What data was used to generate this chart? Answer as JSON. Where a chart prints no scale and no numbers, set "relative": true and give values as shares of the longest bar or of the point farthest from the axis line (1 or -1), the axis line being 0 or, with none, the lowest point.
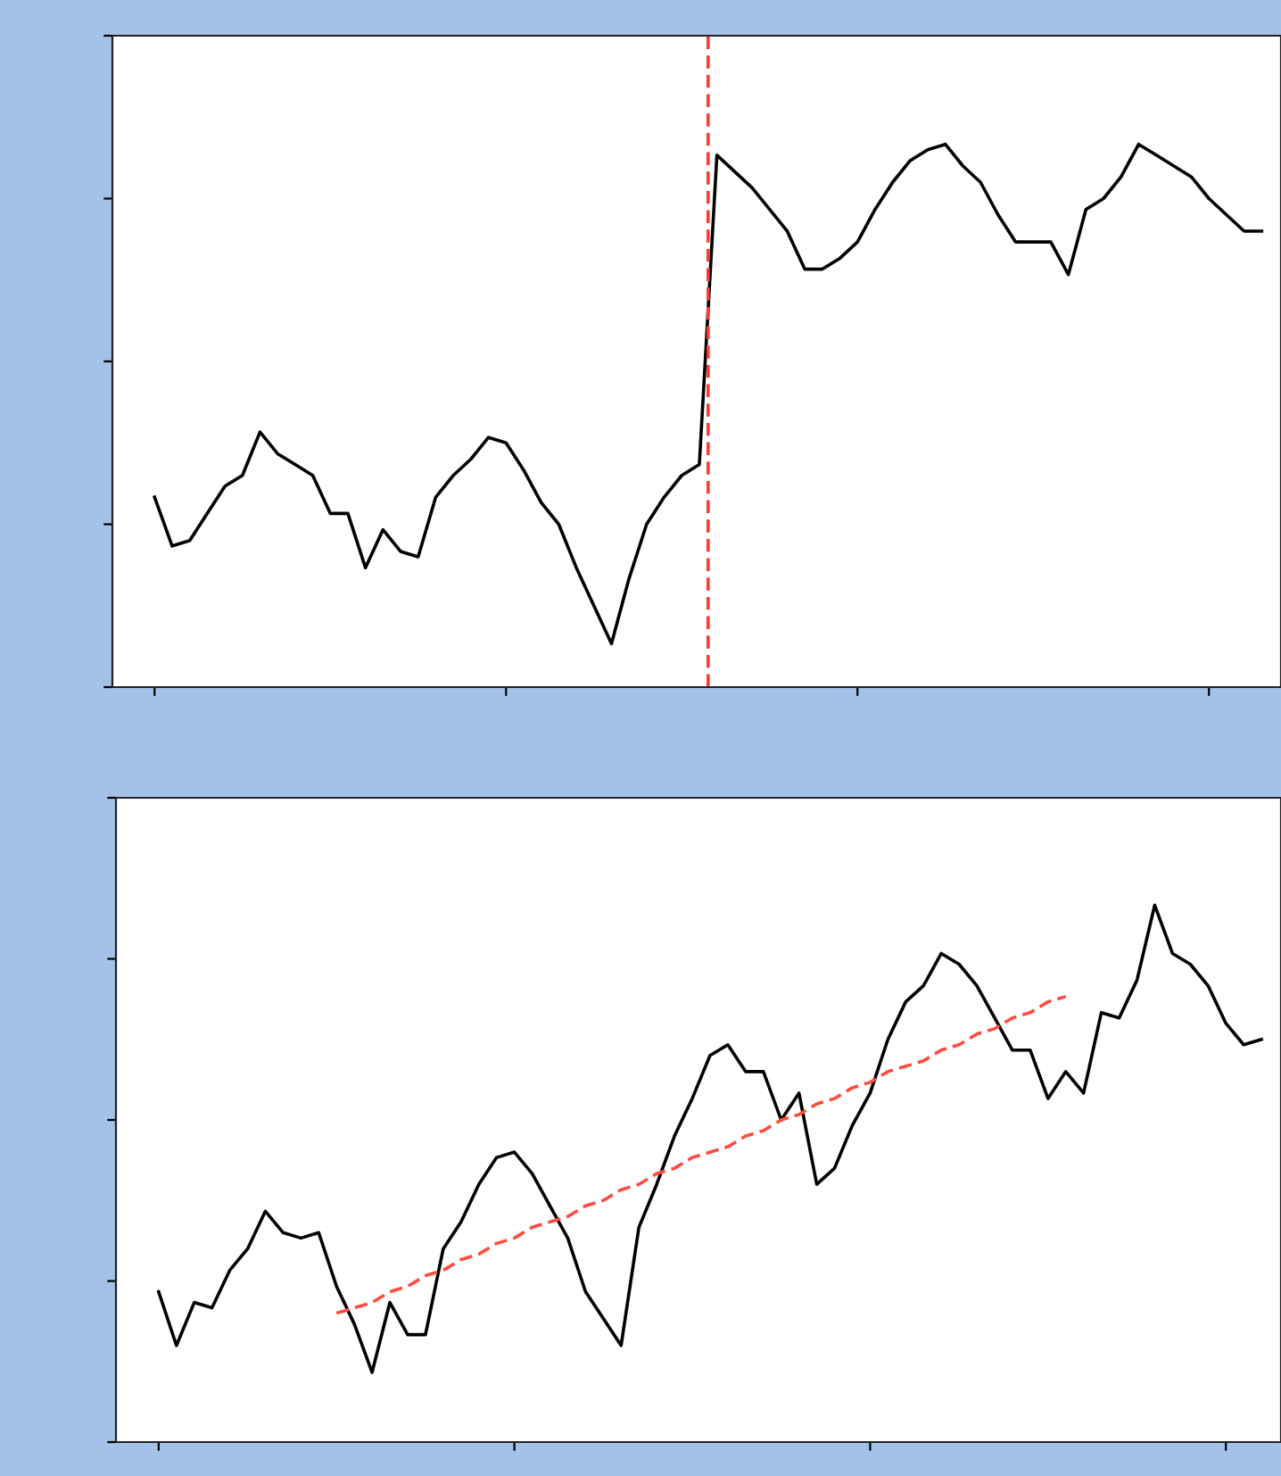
{
  "chart_data": [
    {
      "type": "line",
      "relative": true,
      "tick_labels": false,
      "grid": false,
      "legend": false,
      "categories": [
        null,
        null,
        null,
        null,
        null,
        null,
        null,
        null,
        null,
        null,
        null,
        null,
        null,
        null,
        null,
        null,
        null,
        null,
        null,
        null,
        null,
        null,
        null,
        null,
        null,
        null,
        null,
        null,
        null,
        null,
        null,
        null,
        null,
        null,
        null,
        null,
        null,
        null,
        null,
        null,
        null,
        null,
        null,
        null,
        null,
        null,
        null,
        null,
        null,
        null,
        null,
        null,
        null,
        null,
        null,
        null,
        null,
        null,
        null,
        null,
        null,
        null,
        null,
        null
      ],
      "series": [
        {
          "color": "#000000",
          "values": [
            0.35,
            0.26,
            0.27,
            0.32,
            0.37,
            0.39,
            0.47,
            0.43,
            0.41,
            0.39,
            0.32,
            0.32,
            0.22,
            0.29,
            0.25,
            0.24,
            0.35,
            0.39,
            0.42,
            0.46,
            0.45,
            0.4,
            0.34,
            0.3,
            0.22,
            0.15,
            0.08,
            0.2,
            0.3,
            0.35,
            0.39,
            0.41,
            0.98,
            0.95,
            0.92,
            0.88,
            0.84,
            0.77,
            0.77,
            0.79,
            0.82,
            0.88,
            0.93,
            0.97,
            0.99,
            1.0,
            0.96,
            0.93,
            0.87,
            0.82,
            0.82,
            0.82,
            0.76,
            0.88,
            0.9,
            0.94,
            1.0,
            0.98,
            0.96,
            0.94,
            0.9,
            0.87,
            0.84,
            0.84
          ]
        }
      ]
    },
    {
      "type": "line",
      "relative": true,
      "tick_labels": false,
      "grid": false,
      "legend": false,
      "categories": [
        null,
        null,
        null,
        null,
        null,
        null,
        null,
        null,
        null,
        null,
        null,
        null,
        null,
        null,
        null,
        null,
        null,
        null,
        null,
        null,
        null,
        null,
        null,
        null,
        null,
        null,
        null,
        null,
        null,
        null,
        null,
        null,
        null,
        null,
        null,
        null,
        null,
        null,
        null,
        null,
        null,
        null,
        null,
        null,
        null,
        null,
        null,
        null,
        null,
        null,
        null,
        null,
        null,
        null,
        null,
        null,
        null,
        null,
        null,
        null,
        null,
        null,
        null
      ],
      "series": [
        {
          "color": "#000000",
          "values": [
            0.28,
            0.18,
            0.26,
            0.25,
            0.32,
            0.36,
            0.43,
            0.39,
            0.38,
            0.39,
            0.29,
            0.22,
            0.13,
            0.26,
            0.2,
            0.2,
            0.36,
            0.41,
            0.48,
            0.53,
            0.54,
            0.5,
            0.44,
            0.38,
            0.28,
            0.23,
            0.18,
            0.4,
            0.48,
            0.57,
            0.64,
            0.72,
            0.74,
            0.69,
            0.69,
            0.6,
            0.65,
            0.48,
            0.51,
            0.59,
            0.65,
            0.75,
            0.82,
            0.85,
            0.91,
            0.89,
            0.85,
            0.79,
            0.73,
            0.73,
            0.64,
            0.69,
            0.65,
            0.8,
            0.79,
            0.86,
            1.0,
            0.91,
            0.89,
            0.85,
            0.78,
            0.74,
            0.75
          ]
        },
        {
          "type": "line",
          "color": "#ff4d40",
          "line_style": "dashed",
          "values": [
            null,
            null,
            null,
            null,
            null,
            null,
            null,
            null,
            null,
            null,
            0.24,
            0.25,
            0.26,
            0.28,
            0.29,
            0.31,
            0.32,
            0.34,
            0.35,
            0.37,
            0.38,
            0.4,
            0.41,
            0.42,
            0.44,
            0.45,
            0.47,
            0.48,
            0.5,
            0.51,
            0.53,
            0.54,
            0.55,
            0.57,
            0.58,
            0.6,
            0.61,
            0.63,
            0.64,
            0.66,
            0.67,
            0.69,
            0.7,
            0.71,
            0.73,
            0.74,
            0.76,
            0.77,
            0.79,
            0.8,
            0.82,
            0.83,
            null,
            null,
            null,
            null,
            null,
            null,
            null,
            null,
            null,
            null,
            null
          ]
        }
      ]
    }
  ]
}
